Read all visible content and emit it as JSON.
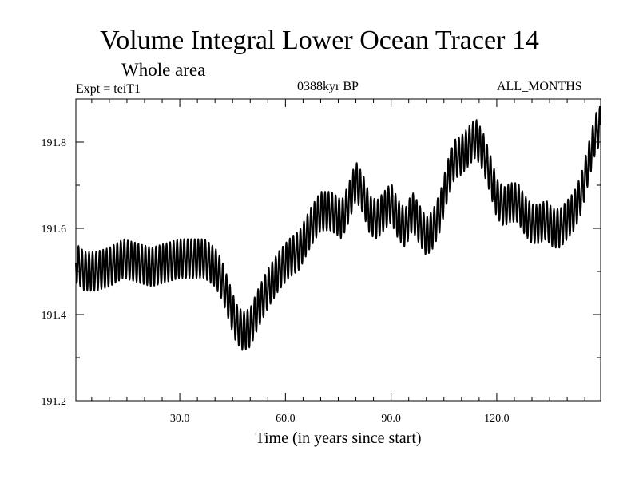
{
  "header": {
    "title": "Volume Integral Lower Ocean Tracer 14",
    "subtitle": "Whole area",
    "expt": "Expt = teiT1",
    "period": "0388kyr BP",
    "months": "ALL_MONTHS"
  },
  "chart_data": {
    "type": "line",
    "title": "Volume Integral Lower Ocean Tracer 14",
    "subtitle": "Whole area",
    "xlabel": "Time (in years since start)",
    "ylabel": "",
    "xlim": [
      0.5,
      149.5
    ],
    "ylim": [
      191.2,
      191.9
    ],
    "xticks": [
      30,
      60,
      90,
      120
    ],
    "xtick_labels": [
      "30.0",
      "60.0",
      "90.0",
      "120.0"
    ],
    "yticks": [
      191.2,
      191.4,
      191.6,
      191.8
    ],
    "ytick_labels": [
      "191.2",
      "191.4",
      "191.6",
      "191.8"
    ],
    "seasonal_amplitude": 0.045,
    "series": [
      {
        "name": "Volume Integral Lower Ocean Tracer 14",
        "color": "#000000",
        "trend_x": [
          0.5,
          3,
          6,
          10,
          14,
          18,
          22,
          26,
          30,
          34,
          37,
          40,
          42,
          44,
          46,
          48,
          50,
          52,
          55,
          58,
          61,
          64,
          67,
          70,
          73,
          76,
          78,
          80,
          82,
          84,
          86,
          88,
          90,
          92,
          94,
          96,
          98,
          100,
          102,
          104,
          106,
          108,
          110,
          112,
          114,
          116,
          118,
          120,
          122,
          124,
          126,
          128,
          130,
          132,
          134,
          136,
          138,
          140,
          142,
          144,
          146,
          148,
          149.5
        ],
        "trend_y": [
          191.52,
          191.5,
          191.5,
          191.51,
          191.53,
          191.52,
          191.51,
          191.52,
          191.53,
          191.53,
          191.53,
          191.51,
          191.48,
          191.43,
          191.38,
          191.36,
          191.37,
          191.41,
          191.46,
          191.5,
          191.53,
          191.55,
          191.6,
          191.64,
          191.64,
          191.62,
          191.66,
          191.71,
          191.68,
          191.63,
          191.62,
          191.64,
          191.66,
          191.62,
          191.6,
          191.64,
          191.61,
          191.58,
          191.6,
          191.64,
          191.71,
          191.76,
          191.77,
          191.79,
          191.81,
          191.78,
          191.73,
          191.67,
          191.65,
          191.66,
          191.66,
          191.63,
          191.61,
          191.61,
          191.62,
          191.6,
          191.6,
          191.62,
          191.64,
          191.68,
          191.75,
          191.82,
          191.84
        ]
      }
    ]
  }
}
